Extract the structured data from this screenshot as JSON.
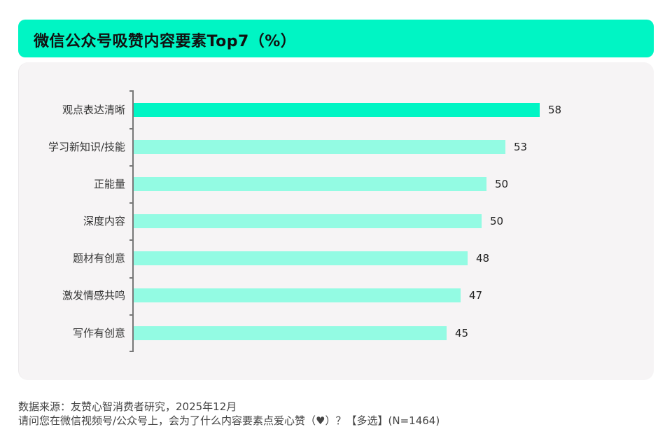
{
  "header": {
    "title": "微信公众号吸赞内容要素Top7（%）"
  },
  "colors": {
    "header_bg": "#00F5C4",
    "highlight_bar": "#00F5C4",
    "bar": "#93FBE3",
    "panel_bg": "#F6F4F5"
  },
  "chart_data": {
    "type": "bar",
    "orientation": "horizontal",
    "title": "微信公众号吸赞内容要素Top7（%）",
    "xlabel": "",
    "ylabel": "",
    "unit": "%",
    "categories": [
      "观点表达清晰",
      "学习新知识/技能",
      "正能量",
      "深度内容",
      "题材有创意",
      "激发情感共鸣",
      "写作有创意"
    ],
    "values": [
      58,
      53,
      50,
      50,
      48,
      47,
      45
    ],
    "bar_lengths_estimated": [
      58,
      53.1,
      50.4,
      49.7,
      47.7,
      46.7,
      44.7
    ],
    "highlighted": "观点表达清晰",
    "grid": false,
    "legend": null
  },
  "chart": {
    "rows": [
      {
        "label": "观点表达清晰",
        "value": "58"
      },
      {
        "label": "学习新知识/技能",
        "value": "53"
      },
      {
        "label": "正能量",
        "value": "50"
      },
      {
        "label": "深度内容",
        "value": "50"
      },
      {
        "label": "题材有创意",
        "value": "48"
      },
      {
        "label": "激发情感共鸣",
        "value": "47"
      },
      {
        "label": "写作有创意",
        "value": "45"
      }
    ]
  },
  "footer": {
    "source": "数据来源：友赞心智消费者研究，2025年12月",
    "question": "请问您在微信视频号/公众号上，会为了什么内容要素点爱心赞（♥）？【多选】(N=1464)"
  }
}
